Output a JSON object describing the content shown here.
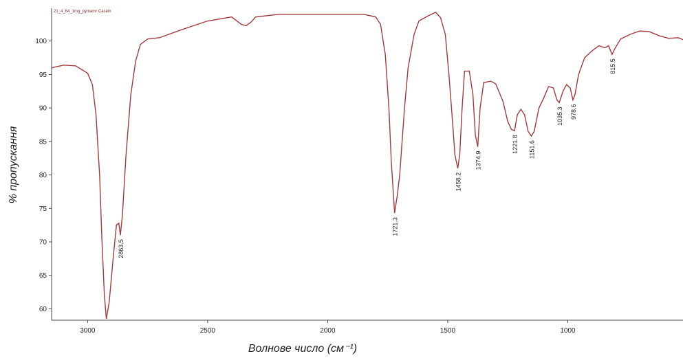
{
  "chart_data": {
    "type": "line",
    "title": "21_4_64_1mg_руmamr Casein",
    "xlabel": "Волнове число (см⁻¹)",
    "ylabel": "% пропускання",
    "color": "#a33a3c",
    "xlim": [
      3150,
      520
    ],
    "ylim": [
      58.3,
      104.9
    ],
    "xticks": [
      3000,
      2500,
      2000,
      1500,
      1000
    ],
    "yticks": [
      60,
      65,
      70,
      75,
      80,
      85,
      90,
      95,
      100
    ],
    "x": [
      3150,
      3100,
      3050,
      3000,
      2980,
      2965,
      2950,
      2940,
      2930,
      2922,
      2910,
      2895,
      2880,
      2870,
      2863.5,
      2855,
      2840,
      2820,
      2800,
      2780,
      2750,
      2700,
      2600,
      2500,
      2400,
      2360,
      2340,
      2320,
      2300,
      2200,
      2000,
      1850,
      1800,
      1780,
      1760,
      1745,
      1735,
      1721.3,
      1710,
      1700,
      1690,
      1680,
      1665,
      1640,
      1620,
      1580,
      1550,
      1530,
      1510,
      1495,
      1480,
      1470,
      1458.2,
      1450,
      1440,
      1430,
      1410,
      1395,
      1385,
      1374.9,
      1365,
      1350,
      1320,
      1300,
      1270,
      1250,
      1235,
      1221.8,
      1210,
      1195,
      1180,
      1165,
      1151.6,
      1140,
      1120,
      1100,
      1080,
      1060,
      1045,
      1035.3,
      1020,
      1005,
      990,
      978.6,
      970,
      955,
      930,
      900,
      870,
      845,
      830,
      815.5,
      805,
      780,
      740,
      700,
      660,
      620,
      580,
      540,
      520
    ],
    "values": [
      96.0,
      96.4,
      96.3,
      95.2,
      93.5,
      89,
      80,
      70,
      62,
      58.5,
      61,
      67,
      72.5,
      72.8,
      71,
      74,
      83,
      92,
      97,
      99.5,
      100.3,
      100.5,
      101.8,
      103,
      103.6,
      102.5,
      102.3,
      102.8,
      103.6,
      104,
      104,
      104,
      103.6,
      102.5,
      98,
      90,
      82,
      74.3,
      77,
      80,
      85,
      90,
      96,
      101,
      103,
      103.8,
      104.3,
      103.5,
      101,
      95,
      88,
      83,
      81,
      83,
      90,
      95.5,
      95.5,
      92,
      86,
      84.2,
      90,
      93.8,
      94,
      93.6,
      91,
      88,
      86.8,
      86.6,
      89,
      89.8,
      89,
      86.5,
      85.8,
      86.5,
      90,
      91.5,
      93.2,
      93,
      91.2,
      90.8,
      92.5,
      93.5,
      93,
      91.2,
      92,
      95,
      97.5,
      98.5,
      99.3,
      99,
      99.3,
      98,
      98.8,
      100.3,
      101,
      101.5,
      101.4,
      100.8,
      100.4,
      100.5,
      100.2
    ],
    "peaks": {
      "x": [
        2863.5,
        1721.3,
        1458.2,
        1374.9,
        1221.8,
        1151.6,
        1035.3,
        978.6,
        815.5
      ],
      "y": [
        71,
        74.3,
        81,
        84.2,
        86.6,
        85.8,
        90.8,
        91.2,
        98
      ]
    }
  }
}
